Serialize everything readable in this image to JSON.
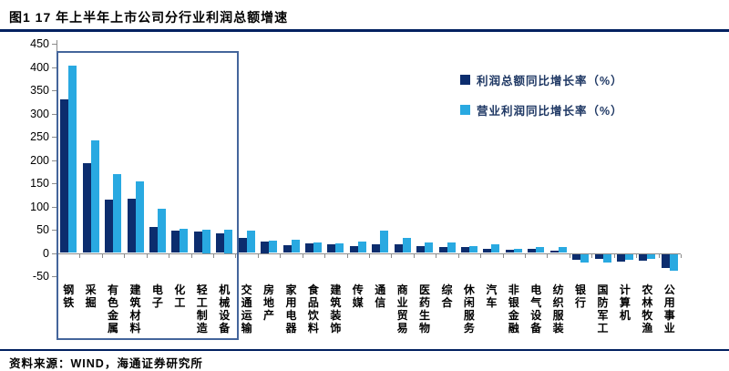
{
  "page": {
    "title": "图1  17 年上半年上市公司分行业利润总额增速",
    "source_note": "资料来源：WIND，海通证券研究所"
  },
  "colors": {
    "series_profit_total": "#0c2d6e",
    "series_operating_profit": "#29a9e1",
    "axis": "#8c8c8c",
    "tick": "#8c8c8c",
    "title_rule": "#002060",
    "footer_rule": "#002060",
    "highlight_box": "#44659b",
    "legend_text": "#1f3864",
    "text": "#000000"
  },
  "chart_data": {
    "type": "bar",
    "title": "17 年上半年上市公司分行业利润总额增速",
    "categories": [
      "钢铁",
      "采掘",
      "有色金属",
      "建筑材料",
      "电子",
      "化工",
      "轻工制造",
      "机械设备",
      "交通运输",
      "房地产",
      "家用电器",
      "食品饮料",
      "建筑装饰",
      "传媒",
      "通信",
      "商业贸易",
      "医药生物",
      "综合",
      "休闲服务",
      "汽车",
      "非银金融",
      "电气设备",
      "纺织服装",
      "银行",
      "国防军工",
      "计算机",
      "农林牧渔",
      "公用事业"
    ],
    "series": [
      {
        "name": "利润总额同比增长率（%）",
        "color": "#0c2d6e",
        "values": [
          330,
          193,
          115,
          117,
          55,
          49,
          46,
          43,
          32,
          25,
          17,
          20,
          19,
          15,
          18,
          18,
          14,
          12,
          12,
          8,
          6,
          8,
          4,
          -12,
          -11,
          -16,
          -15,
          -30
        ]
      },
      {
        "name": "营业利润同比增长率（%）",
        "color": "#29a9e1",
        "values": [
          402,
          242,
          170,
          153,
          95,
          52,
          50,
          50,
          48,
          27,
          28,
          23,
          20,
          24,
          48,
          33,
          22,
          23,
          15,
          18,
          8,
          13,
          13,
          -18,
          -18,
          -12,
          -11,
          -37
        ]
      }
    ],
    "ylim": [
      -50,
      450
    ],
    "y_tick_step": 50,
    "y_ticks": [
      450,
      400,
      350,
      300,
      250,
      200,
      150,
      100,
      50,
      0,
      -50
    ],
    "xlabel": "",
    "ylabel": "",
    "grid": false,
    "legend_position": "top-right",
    "highlight_box": {
      "from_category": "钢铁",
      "to_category": "机械设备"
    }
  }
}
